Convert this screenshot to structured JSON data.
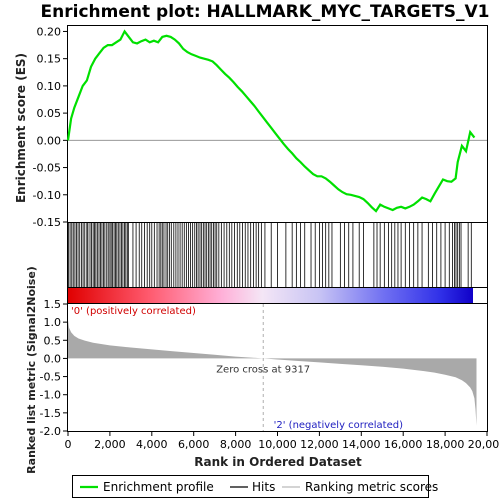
{
  "chart_data": {
    "type": "line",
    "title": "Enrichment plot: HALLMARK_MYC_TARGETS_V1",
    "x_label": "Rank in Ordered Dataset",
    "x_range": [
      0,
      20000
    ],
    "x_ticks": [
      "0",
      "2,000",
      "4,000",
      "6,000",
      "8,000",
      "10,000",
      "12,000",
      "14,000",
      "16,000",
      "18,000",
      "20,000"
    ],
    "enrichment": {
      "ylabel": "Enrichment score (ES)",
      "ylim": [
        -0.15,
        0.21
      ],
      "y_ticks": [
        "-0.15",
        "-0.10",
        "-0.05",
        "0.00",
        "0.05",
        "0.10",
        "0.15",
        "0.20"
      ],
      "x": [
        0,
        150,
        300,
        500,
        700,
        900,
        1100,
        1300,
        1500,
        1700,
        1900,
        2100,
        2300,
        2500,
        2700,
        2900,
        3100,
        3300,
        3500,
        3700,
        3900,
        4100,
        4300,
        4500,
        4700,
        4900,
        5100,
        5300,
        5500,
        5700,
        5900,
        6100,
        6300,
        6500,
        6700,
        6900,
        7100,
        7300,
        7500,
        7700,
        7900,
        8100,
        8300,
        8500,
        8700,
        8900,
        9100,
        9300,
        9500,
        9700,
        9900,
        10100,
        10300,
        10500,
        10700,
        10900,
        11100,
        11300,
        11500,
        11700,
        11900,
        12100,
        12300,
        12500,
        12700,
        12900,
        13100,
        13300,
        13500,
        13700,
        13900,
        14100,
        14300,
        14500,
        14700,
        14900,
        15100,
        15300,
        15500,
        15700,
        15900,
        16100,
        16300,
        16500,
        16700,
        16900,
        17100,
        17300,
        17500,
        17700,
        17900,
        18100,
        18300,
        18500,
        18600,
        18800,
        19000,
        19200,
        19400
      ],
      "y": [
        0.0,
        0.04,
        0.06,
        0.08,
        0.1,
        0.11,
        0.135,
        0.15,
        0.16,
        0.17,
        0.175,
        0.175,
        0.18,
        0.185,
        0.2,
        0.19,
        0.18,
        0.178,
        0.182,
        0.185,
        0.18,
        0.183,
        0.18,
        0.19,
        0.192,
        0.19,
        0.185,
        0.178,
        0.168,
        0.162,
        0.158,
        0.155,
        0.152,
        0.15,
        0.148,
        0.145,
        0.138,
        0.13,
        0.122,
        0.115,
        0.107,
        0.098,
        0.09,
        0.081,
        0.072,
        0.063,
        0.053,
        0.043,
        0.033,
        0.023,
        0.013,
        0.003,
        -0.007,
        -0.016,
        -0.024,
        -0.033,
        -0.04,
        -0.048,
        -0.055,
        -0.062,
        -0.066,
        -0.066,
        -0.07,
        -0.076,
        -0.083,
        -0.09,
        -0.095,
        -0.099,
        -0.1,
        -0.102,
        -0.104,
        -0.108,
        -0.115,
        -0.123,
        -0.13,
        -0.118,
        -0.122,
        -0.125,
        -0.128,
        -0.124,
        -0.122,
        -0.125,
        -0.122,
        -0.118,
        -0.112,
        -0.105,
        -0.108,
        -0.112,
        -0.098,
        -0.085,
        -0.072,
        -0.075,
        -0.076,
        -0.07,
        -0.04,
        -0.01,
        -0.02,
        0.015,
        0.005
      ],
      "series_name": "Enrichment profile",
      "color": "#00ff00"
    },
    "hits": {
      "name": "Hits",
      "positions": [
        30,
        100,
        180,
        250,
        330,
        400,
        480,
        560,
        650,
        720,
        800,
        900,
        950,
        1050,
        1120,
        1200,
        1260,
        1330,
        1400,
        1480,
        1550,
        1620,
        1700,
        1760,
        1850,
        1920,
        2000,
        2060,
        2130,
        2200,
        2270,
        2330,
        2400,
        2480,
        2550,
        2620,
        2700,
        2760,
        2830,
        2880,
        3100,
        3250,
        3400,
        3520,
        3650,
        3780,
        3900,
        4000,
        4120,
        4250,
        4350,
        4430,
        4500,
        4580,
        4680,
        4760,
        4850,
        4930,
        5050,
        5150,
        5250,
        5350,
        5450,
        5550,
        5650,
        5750,
        5850,
        5950,
        6050,
        6130,
        6210,
        6300,
        6380,
        6460,
        6540,
        6620,
        6700,
        6780,
        6860,
        6940,
        7020,
        7100,
        7200,
        7320,
        7450,
        7580,
        7700,
        7820,
        7950,
        8080,
        8200,
        8330,
        8460,
        8590,
        8720,
        8850,
        8980,
        9100,
        9230,
        9400,
        9700,
        10000,
        10400,
        10700,
        10900,
        11100,
        11300,
        11600,
        11800,
        12000,
        12150,
        12300,
        12450,
        12600,
        13000,
        13200,
        13400,
        13600,
        13900,
        14100,
        14600,
        14750,
        14900,
        15100,
        15300,
        15450,
        15600,
        15750,
        15900,
        16100,
        16300,
        16500,
        16700,
        16900,
        17200,
        17400,
        17600,
        17800,
        18000,
        18200,
        18350,
        18450,
        18520,
        18600,
        18680,
        18760,
        19100,
        19250
      ]
    },
    "ranking": {
      "ylabel": "Ranked list metric (Signal2Noise)",
      "ylim": [
        -2.0,
        1.5
      ],
      "y_ticks": [
        "-2.0",
        "-1.5",
        "-1.0",
        "-0.5",
        "0.0",
        "0.5",
        "1.0",
        "1.5"
      ],
      "x": [
        0,
        50,
        150,
        300,
        500,
        800,
        1200,
        2000,
        3000,
        4000,
        5000,
        6000,
        7000,
        8000,
        9317,
        10000,
        11000,
        12000,
        13000,
        14000,
        15000,
        16000,
        17000,
        17500,
        18000,
        18500,
        18800,
        19000,
        19200,
        19300,
        19400,
        19450,
        19500
      ],
      "y": [
        1.05,
        0.85,
        0.72,
        0.62,
        0.55,
        0.49,
        0.43,
        0.36,
        0.3,
        0.25,
        0.2,
        0.15,
        0.1,
        0.05,
        0.0,
        -0.03,
        -0.07,
        -0.11,
        -0.15,
        -0.19,
        -0.23,
        -0.28,
        -0.35,
        -0.39,
        -0.45,
        -0.52,
        -0.6,
        -0.68,
        -0.8,
        -0.9,
        -1.1,
        -1.4,
        -1.85
      ],
      "name": "Ranking metric scores",
      "zero_cross_label": "Zero cross at 9317",
      "zero_cross": 9317,
      "pos_label": "'0' (positively correlated)",
      "neg_label": "'2' (negatively correlated)"
    },
    "legend": [
      "Enrichment profile",
      "Hits",
      "Ranking metric scores"
    ],
    "legend_placement": "bottom"
  }
}
